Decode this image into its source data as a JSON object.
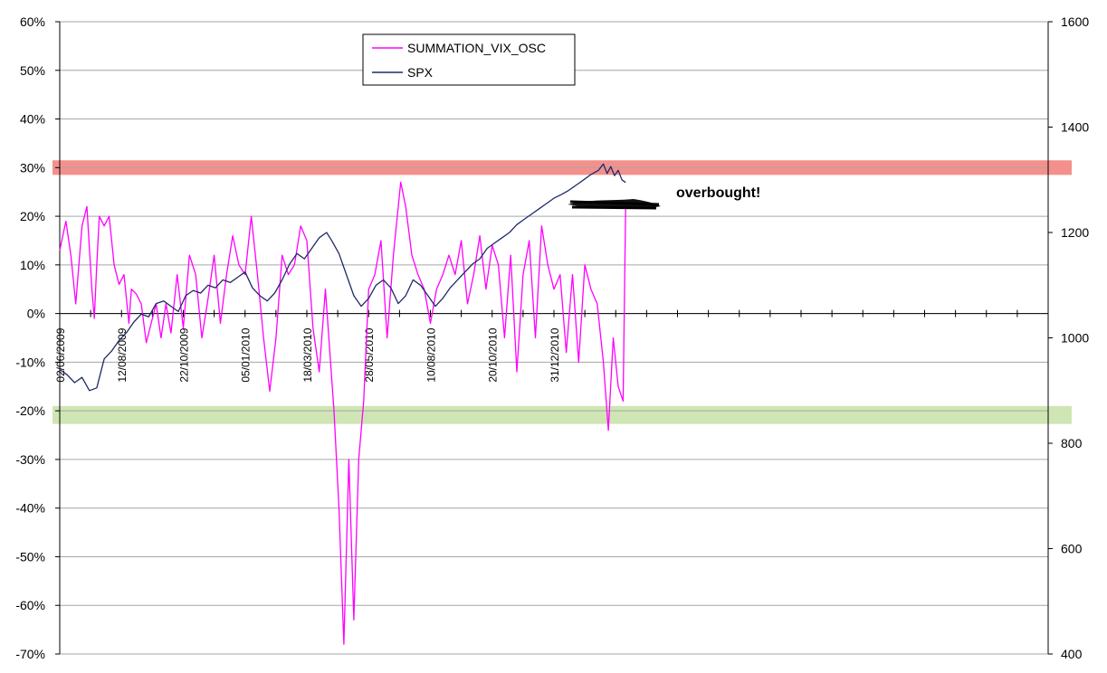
{
  "chart_data": {
    "type": "line",
    "title": "",
    "left_axis": {
      "ylim": [
        -0.7,
        0.6
      ],
      "ticks": [
        0.6,
        0.5,
        0.4,
        0.3,
        0.2,
        0.1,
        0.0,
        -0.1,
        -0.2,
        -0.3,
        -0.4,
        -0.5,
        -0.6,
        -0.7
      ],
      "tick_labels": [
        "60%",
        "50%",
        "40%",
        "30%",
        "20%",
        "10%",
        "0%",
        "-10%",
        "-20%",
        "-30%",
        "-40%",
        "-50%",
        "-60%",
        "-70%"
      ]
    },
    "right_axis": {
      "ylim": [
        400,
        1600
      ],
      "ticks": [
        1600,
        1400,
        1200,
        1000,
        800,
        600,
        400
      ],
      "tick_labels": [
        "1600",
        "1400",
        "1200",
        "1000",
        "800",
        "600",
        "400"
      ]
    },
    "x_axis": {
      "range_days": [
        0,
        800
      ],
      "tick_labels": [
        "02/06/2009",
        "12/08/2009",
        "22/10/2009",
        "05/01/2010",
        "18/03/2010",
        "28/05/2010",
        "10/08/2010",
        "20/10/2010",
        "31/12/2010"
      ],
      "tick_days": [
        0,
        50,
        100,
        150,
        200,
        250,
        300,
        350,
        400
      ]
    },
    "legend": {
      "placement": "top-center",
      "entries": [
        "SUMMATION_VIX_OSC",
        "SPX"
      ]
    },
    "bands": [
      {
        "name": "overbought-band",
        "range": [
          0.285,
          0.315
        ],
        "color": "#f4908c"
      },
      {
        "name": "oversold-band",
        "range": [
          -0.227,
          -0.19
        ],
        "color": "#cfe6b4"
      }
    ],
    "annotation": {
      "text": "overbought!"
    },
    "series": [
      {
        "name": "SUMMATION_VIX_OSC",
        "axis": "left",
        "color": "#ff00ff",
        "points": [
          [
            0,
            0.13
          ],
          [
            5,
            0.19
          ],
          [
            9,
            0.12
          ],
          [
            13,
            0.02
          ],
          [
            18,
            0.18
          ],
          [
            22,
            0.22
          ],
          [
            26,
            0.05
          ],
          [
            28,
            -0.01
          ],
          [
            30,
            0.1
          ],
          [
            32,
            0.2
          ],
          [
            36,
            0.18
          ],
          [
            40,
            0.2
          ],
          [
            44,
            0.1
          ],
          [
            48,
            0.06
          ],
          [
            52,
            0.08
          ],
          [
            56,
            -0.02
          ],
          [
            58,
            0.05
          ],
          [
            62,
            0.04
          ],
          [
            66,
            0.02
          ],
          [
            70,
            -0.06
          ],
          [
            74,
            -0.02
          ],
          [
            78,
            0.02
          ],
          [
            82,
            -0.05
          ],
          [
            86,
            0.02
          ],
          [
            90,
            -0.04
          ],
          [
            95,
            0.08
          ],
          [
            100,
            -0.03
          ],
          [
            105,
            0.12
          ],
          [
            110,
            0.08
          ],
          [
            115,
            -0.05
          ],
          [
            120,
            0.03
          ],
          [
            125,
            0.12
          ],
          [
            130,
            -0.02
          ],
          [
            135,
            0.08
          ],
          [
            140,
            0.16
          ],
          [
            145,
            0.1
          ],
          [
            150,
            0.08
          ],
          [
            155,
            0.2
          ],
          [
            160,
            0.08
          ],
          [
            165,
            -0.05
          ],
          [
            170,
            -0.16
          ],
          [
            175,
            -0.05
          ],
          [
            180,
            0.12
          ],
          [
            185,
            0.08
          ],
          [
            190,
            0.1
          ],
          [
            195,
            0.18
          ],
          [
            200,
            0.15
          ],
          [
            205,
            -0.03
          ],
          [
            210,
            -0.12
          ],
          [
            215,
            0.05
          ],
          [
            222,
            -0.2
          ],
          [
            226,
            -0.4
          ],
          [
            230,
            -0.68
          ],
          [
            234,
            -0.3
          ],
          [
            238,
            -0.63
          ],
          [
            242,
            -0.3
          ],
          [
            246,
            -0.18
          ],
          [
            250,
            0.05
          ],
          [
            255,
            0.08
          ],
          [
            260,
            0.15
          ],
          [
            265,
            -0.05
          ],
          [
            270,
            0.12
          ],
          [
            276,
            0.27
          ],
          [
            280,
            0.22
          ],
          [
            285,
            0.12
          ],
          [
            290,
            0.08
          ],
          [
            295,
            0.05
          ],
          [
            300,
            -0.02
          ],
          [
            305,
            0.05
          ],
          [
            310,
            0.08
          ],
          [
            315,
            0.12
          ],
          [
            320,
            0.08
          ],
          [
            325,
            0.15
          ],
          [
            330,
            0.02
          ],
          [
            335,
            0.08
          ],
          [
            340,
            0.16
          ],
          [
            345,
            0.05
          ],
          [
            350,
            0.14
          ],
          [
            355,
            0.1
          ],
          [
            360,
            -0.05
          ],
          [
            365,
            0.12
          ],
          [
            370,
            -0.12
          ],
          [
            375,
            0.08
          ],
          [
            380,
            0.15
          ],
          [
            385,
            -0.05
          ],
          [
            390,
            0.18
          ],
          [
            395,
            0.1
          ],
          [
            400,
            0.05
          ],
          [
            405,
            0.08
          ],
          [
            410,
            -0.08
          ],
          [
            415,
            0.08
          ],
          [
            420,
            -0.1
          ],
          [
            425,
            0.1
          ],
          [
            430,
            0.05
          ],
          [
            435,
            0.02
          ],
          [
            440,
            -0.1
          ],
          [
            444,
            -0.24
          ],
          [
            448,
            -0.05
          ],
          [
            452,
            -0.15
          ],
          [
            456,
            -0.18
          ],
          [
            458,
            0.22
          ]
        ]
      },
      {
        "name": "SPX",
        "axis": "right",
        "color": "#1f2a66",
        "points": [
          [
            0,
            940
          ],
          [
            6,
            930
          ],
          [
            12,
            915
          ],
          [
            18,
            925
          ],
          [
            24,
            900
          ],
          [
            30,
            905
          ],
          [
            36,
            960
          ],
          [
            42,
            975
          ],
          [
            48,
            995
          ],
          [
            54,
            1010
          ],
          [
            60,
            1030
          ],
          [
            66,
            1045
          ],
          [
            72,
            1040
          ],
          [
            78,
            1065
          ],
          [
            84,
            1070
          ],
          [
            90,
            1060
          ],
          [
            96,
            1050
          ],
          [
            102,
            1080
          ],
          [
            108,
            1090
          ],
          [
            114,
            1085
          ],
          [
            120,
            1100
          ],
          [
            126,
            1095
          ],
          [
            132,
            1110
          ],
          [
            138,
            1105
          ],
          [
            144,
            1115
          ],
          [
            150,
            1125
          ],
          [
            156,
            1095
          ],
          [
            162,
            1080
          ],
          [
            168,
            1070
          ],
          [
            174,
            1085
          ],
          [
            180,
            1110
          ],
          [
            186,
            1140
          ],
          [
            192,
            1160
          ],
          [
            198,
            1150
          ],
          [
            204,
            1170
          ],
          [
            210,
            1190
          ],
          [
            216,
            1200
          ],
          [
            220,
            1185
          ],
          [
            226,
            1160
          ],
          [
            232,
            1120
          ],
          [
            238,
            1080
          ],
          [
            244,
            1060
          ],
          [
            250,
            1075
          ],
          [
            256,
            1100
          ],
          [
            262,
            1110
          ],
          [
            268,
            1095
          ],
          [
            274,
            1065
          ],
          [
            280,
            1080
          ],
          [
            286,
            1110
          ],
          [
            292,
            1100
          ],
          [
            298,
            1080
          ],
          [
            304,
            1060
          ],
          [
            310,
            1075
          ],
          [
            316,
            1095
          ],
          [
            322,
            1110
          ],
          [
            328,
            1125
          ],
          [
            334,
            1140
          ],
          [
            340,
            1150
          ],
          [
            346,
            1170
          ],
          [
            352,
            1180
          ],
          [
            358,
            1190
          ],
          [
            364,
            1200
          ],
          [
            370,
            1215
          ],
          [
            376,
            1225
          ],
          [
            382,
            1235
          ],
          [
            388,
            1245
          ],
          [
            394,
            1255
          ],
          [
            400,
            1265
          ],
          [
            406,
            1272
          ],
          [
            412,
            1280
          ],
          [
            418,
            1290
          ],
          [
            424,
            1300
          ],
          [
            430,
            1310
          ],
          [
            436,
            1318
          ],
          [
            440,
            1330
          ],
          [
            443,
            1312
          ],
          [
            446,
            1325
          ],
          [
            449,
            1308
          ],
          [
            452,
            1318
          ],
          [
            455,
            1300
          ],
          [
            458,
            1295
          ]
        ]
      }
    ]
  }
}
